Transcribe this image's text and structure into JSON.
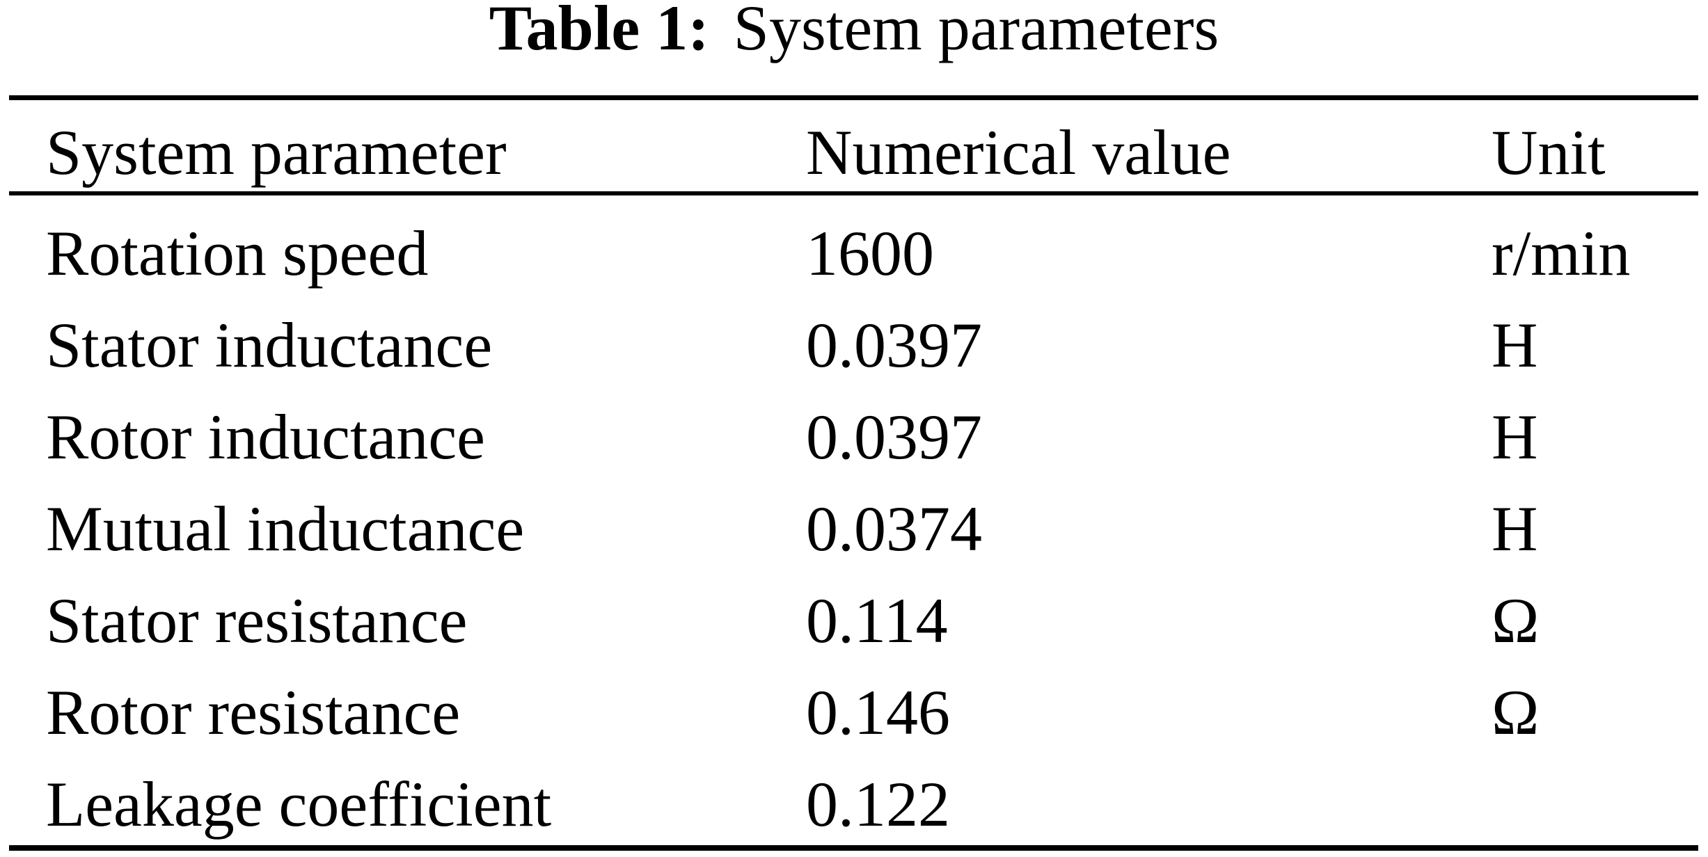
{
  "table": {
    "caption": {
      "label": "Table 1:",
      "title": "System parameters"
    },
    "columns": {
      "parameter": "System parameter",
      "value": "Numerical value",
      "unit": "Unit"
    },
    "rows": [
      {
        "parameter": "Rotation speed",
        "value": "1600",
        "unit": "r/min"
      },
      {
        "parameter": "Stator inductance",
        "value": "0.0397",
        "unit": "H"
      },
      {
        "parameter": "Rotor inductance",
        "value": "0.0397",
        "unit": "H"
      },
      {
        "parameter": "Mutual inductance",
        "value": "0.0374",
        "unit": "H"
      },
      {
        "parameter": "Stator resistance",
        "value": "0.114",
        "unit": "Ω"
      },
      {
        "parameter": "Rotor resistance",
        "value": "0.146",
        "unit": "Ω"
      },
      {
        "parameter": "Leakage coefficient",
        "value": "0.122",
        "unit": ""
      }
    ],
    "text_color": "#000000",
    "background_color": "#ffffff"
  }
}
